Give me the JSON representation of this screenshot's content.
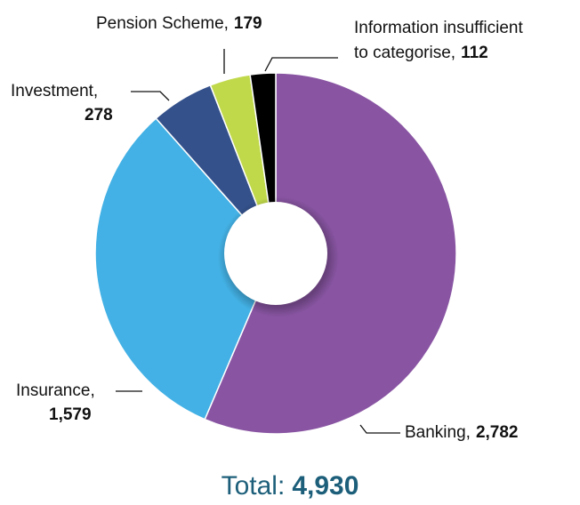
{
  "chart_data": {
    "type": "donut",
    "categories": [
      "Banking,",
      "Insurance,",
      "Investment,",
      "Pension Scheme,",
      "Information insufficient to categorise,"
    ],
    "values": [
      2782,
      1579,
      278,
      179,
      112
    ],
    "value_labels": [
      "2,782",
      "1,579",
      "278",
      "179",
      "112"
    ],
    "colors": [
      "#8955a3",
      "#43b1e5",
      "#34518b",
      "#c0d94b",
      "#000000"
    ],
    "total": {
      "label": "Total:",
      "value": 4930,
      "value_label": "4,930"
    }
  }
}
